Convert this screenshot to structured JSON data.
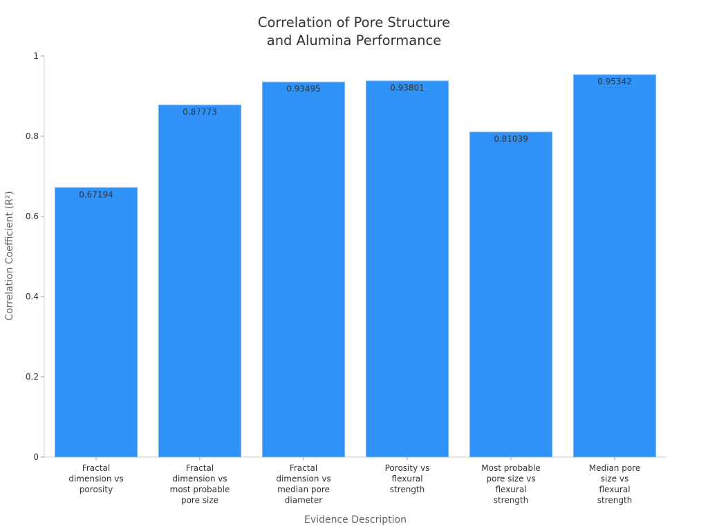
{
  "chart_data": {
    "type": "bar",
    "title": "Correlation of Pore Structure and Alumina Performance",
    "title_lines": [
      "Correlation of Pore Structure",
      "and Alumina Performance"
    ],
    "xlabel": "Evidence Description",
    "ylabel": "Correlation Coefficient (R²)",
    "ylim": [
      0,
      1
    ],
    "yticks": [
      0,
      0.2,
      0.4,
      0.6,
      0.8,
      1
    ],
    "ytick_labels": [
      "0",
      "0.2",
      "0.4",
      "0.6",
      "0.8",
      "1"
    ],
    "grid": false,
    "legend": null,
    "bar_color": "#3092F7",
    "categories": [
      "Fractal dimension vs porosity",
      "Fractal dimension vs most probable pore size",
      "Fractal dimension vs median pore diameter",
      "Porosity vs flexural strength",
      "Most probable pore size vs flexural strength",
      "Median pore size vs flexural strength"
    ],
    "category_lines": [
      [
        "Fractal",
        "dimension vs",
        "porosity"
      ],
      [
        "Fractal",
        "dimension vs",
        "most probable",
        "pore size"
      ],
      [
        "Fractal",
        "dimension vs",
        "median pore",
        "diameter"
      ],
      [
        "Porosity vs",
        "flexural",
        "strength"
      ],
      [
        "Most probable",
        "pore size vs",
        "flexural",
        "strength"
      ],
      [
        "Median pore",
        "size vs",
        "flexural",
        "strength"
      ]
    ],
    "values": [
      0.67194,
      0.87773,
      0.93495,
      0.93801,
      0.81039,
      0.95342
    ],
    "value_labels": [
      "0.67194",
      "0.87773",
      "0.93495",
      "0.93801",
      "0.81039",
      "0.95342"
    ]
  }
}
